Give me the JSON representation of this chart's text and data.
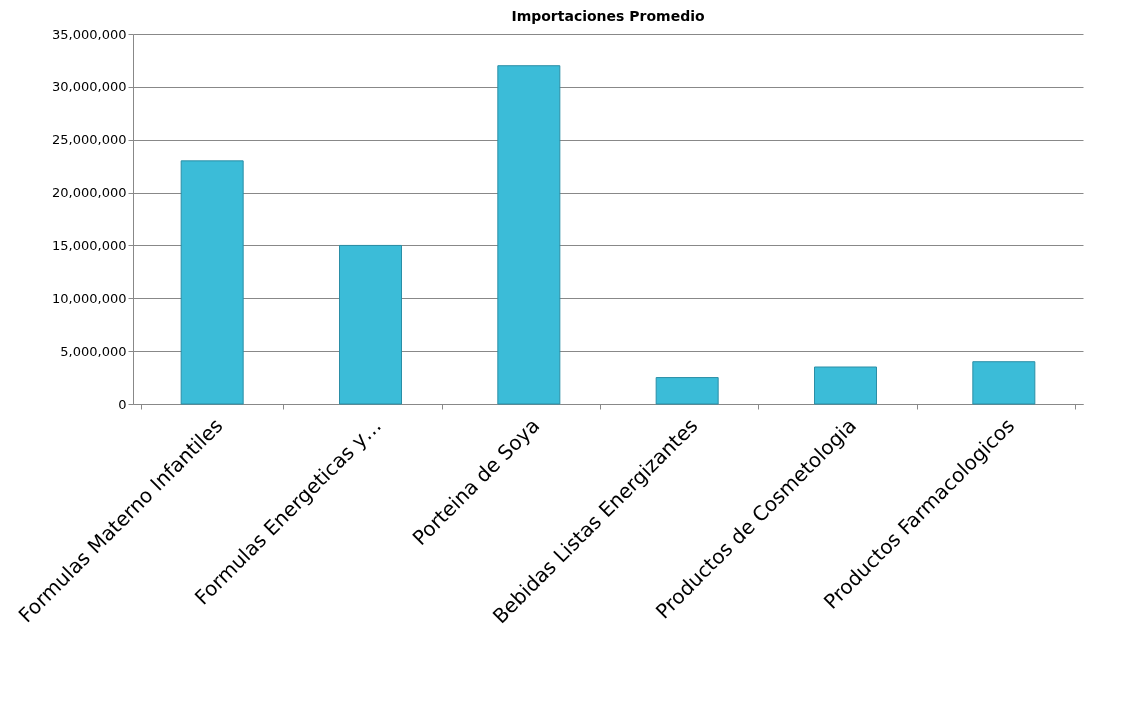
{
  "chart_data": {
    "type": "bar",
    "title": "Importaciones Promedio",
    "categories": [
      "Formulas Materno Infantiles",
      "Formulas Energeticas y…",
      "Porteina de Soya",
      "Bebidas Listas Energizantes",
      "Productos de Cosmetologia",
      "Productos Farmacologicos"
    ],
    "values": [
      23000000,
      15000000,
      32000000,
      2500000,
      3500000,
      4000000
    ],
    "color": "#3bbcd8",
    "ylim": [
      0,
      35000000
    ],
    "yticks": [
      {
        "value": 0,
        "label": "0"
      },
      {
        "value": 5000000,
        "label": "5,000,000"
      },
      {
        "value": 10000000,
        "label": "10,000,000"
      },
      {
        "value": 15000000,
        "label": "15,000,000"
      },
      {
        "value": 20000000,
        "label": "20,000,000"
      },
      {
        "value": 25000000,
        "label": "25,000,000"
      },
      {
        "value": 30000000,
        "label": "30,000,000"
      },
      {
        "value": 35000000,
        "label": "35,000,000"
      }
    ],
    "grid": "y"
  }
}
